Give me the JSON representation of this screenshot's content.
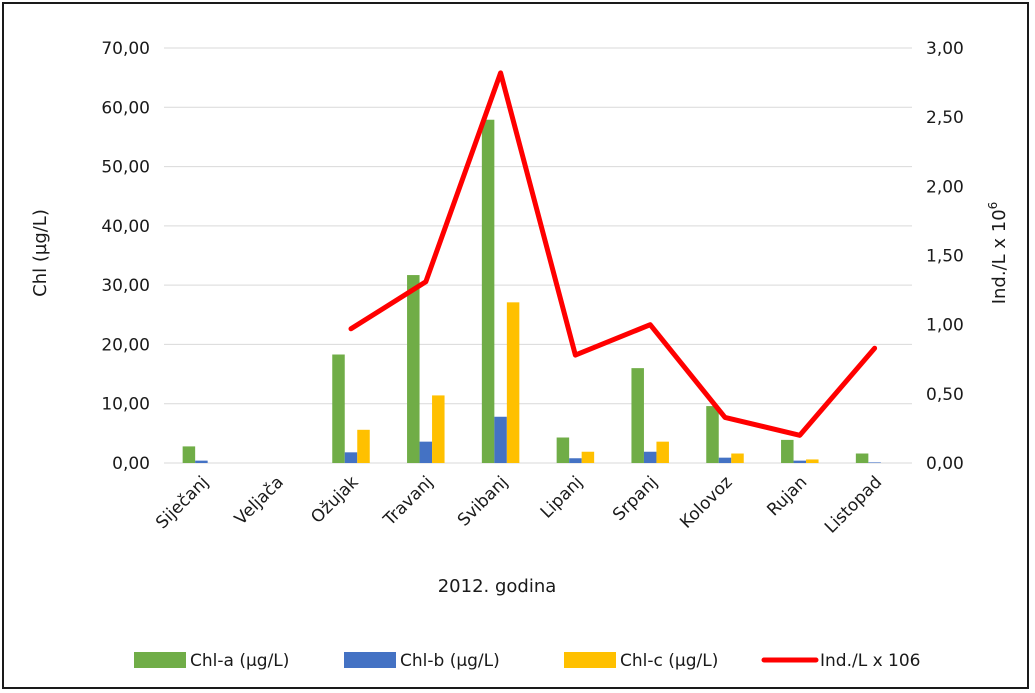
{
  "chart_data": {
    "type": "bar",
    "categories": [
      "Siječanj",
      "Veljača",
      "Ožujak",
      "Travanj",
      "Svibanj",
      "Lipanj",
      "Srpanj",
      "Kolovoz",
      "Rujan",
      "Listopad"
    ],
    "series": [
      {
        "name": "Chl-a (µg/L)",
        "type": "bar",
        "axis": "left",
        "color": "#70ad47",
        "values": [
          2.8,
          0,
          18.3,
          31.7,
          57.9,
          4.3,
          16.0,
          9.6,
          3.9,
          1.6
        ]
      },
      {
        "name": "Chl-b (µg/L)",
        "type": "bar",
        "axis": "left",
        "color": "#4472c4",
        "values": [
          0.4,
          0,
          1.8,
          3.6,
          7.8,
          0.8,
          1.9,
          0.9,
          0.4,
          0.1
        ]
      },
      {
        "name": "Chl-c (µg/L)",
        "type": "bar",
        "axis": "left",
        "color": "#ffc000",
        "values": [
          0,
          0,
          5.6,
          11.4,
          27.1,
          1.9,
          3.6,
          1.6,
          0.6,
          0
        ]
      },
      {
        "name": "Ind./L x 106",
        "type": "line",
        "axis": "right",
        "color": "#ff0000",
        "values": [
          null,
          null,
          0.97,
          1.31,
          2.82,
          0.78,
          1.0,
          0.33,
          0.2,
          0.83
        ]
      }
    ],
    "xlabel": "2012. godina",
    "ylabel": "Chl (µg/L)",
    "y2label_base": "Ind./L x 10",
    "y2label_sup": "6",
    "ylim": [
      0,
      70
    ],
    "y2lim": [
      0,
      3
    ],
    "yticks": [
      "0,00",
      "10,00",
      "20,00",
      "30,00",
      "40,00",
      "50,00",
      "60,00",
      "70,00"
    ],
    "y2ticks": [
      "0,00",
      "0,50",
      "1,00",
      "1,50",
      "2,00",
      "2,50",
      "3,00"
    ],
    "grid": true,
    "legend_position": "bottom"
  }
}
